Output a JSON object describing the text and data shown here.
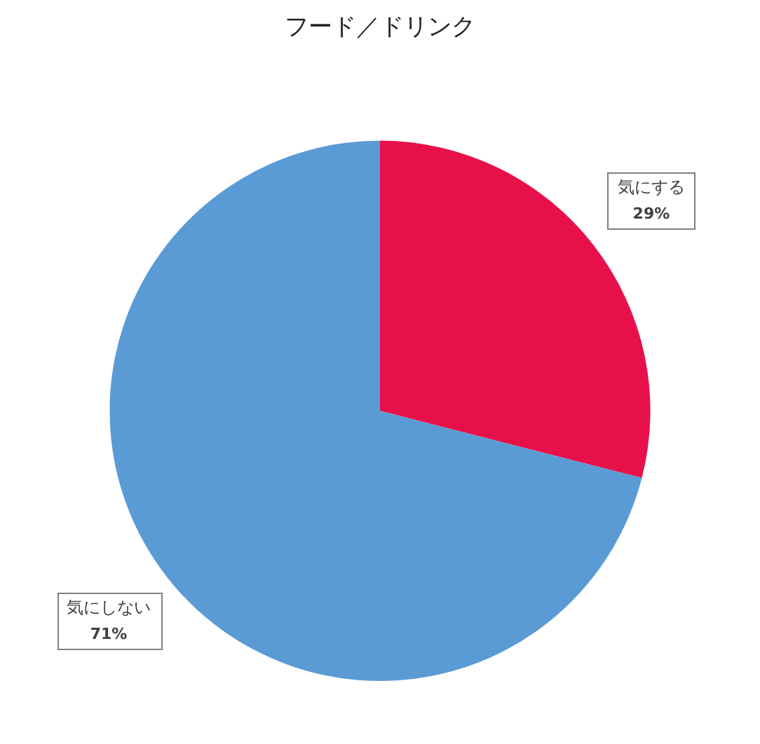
{
  "chart_data": {
    "type": "pie",
    "title": "フード／ドリンク",
    "categories": [
      "気にする",
      "気にしない"
    ],
    "values": [
      29,
      71
    ],
    "colors": [
      "#e8104a",
      "#5b9bd5"
    ],
    "value_labels": [
      "29%",
      "71%"
    ],
    "legend": false
  }
}
